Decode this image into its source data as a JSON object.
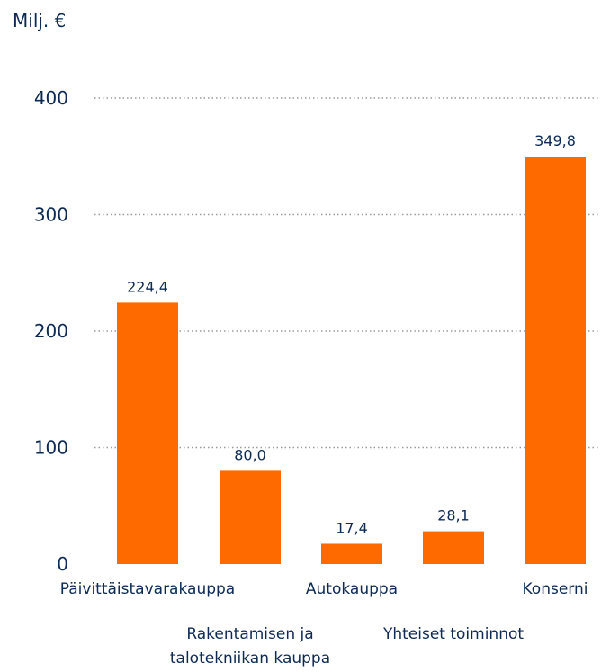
{
  "chart_data": {
    "type": "bar",
    "ylabel": "Milj. €",
    "categories": [
      "Päivittäistavarakauppa",
      "Rakentamisen ja talotekniikan kauppa",
      "Autokauppa",
      "Yhteiset toiminnot",
      "Konserni"
    ],
    "category_lines": [
      [
        "Päivittäistavarakauppa"
      ],
      [
        "Rakentamisen ja",
        "talotekniikan kauppa"
      ],
      [
        "Autokauppa"
      ],
      [
        "Yhteiset toiminnot"
      ],
      [
        "Konserni"
      ]
    ],
    "values": [
      224.4,
      80.0,
      17.4,
      28.1,
      349.8
    ],
    "value_labels": [
      "224,4",
      "80,0",
      "17,4",
      "28,1",
      "349,8"
    ],
    "yticks": [
      0,
      100,
      200,
      300,
      400
    ],
    "ytick_labels": [
      "0",
      "100",
      "200",
      "300",
      "400"
    ],
    "ylim": [
      0,
      400
    ],
    "grid": true,
    "bar_color": "#ff6a00"
  }
}
